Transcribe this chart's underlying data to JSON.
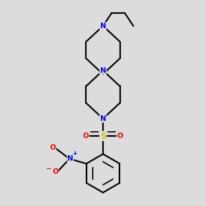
{
  "bg_color": "#dcdcdc",
  "bond_color": "#000000",
  "N_color": "#0000ff",
  "O_color": "#ff0000",
  "S_color": "#cccc00",
  "lw": 1.6,
  "figsize": [
    3.0,
    3.0
  ],
  "dpi": 100,
  "xlim": [
    -2.5,
    2.5
  ],
  "ylim": [
    -4.2,
    4.2
  ]
}
